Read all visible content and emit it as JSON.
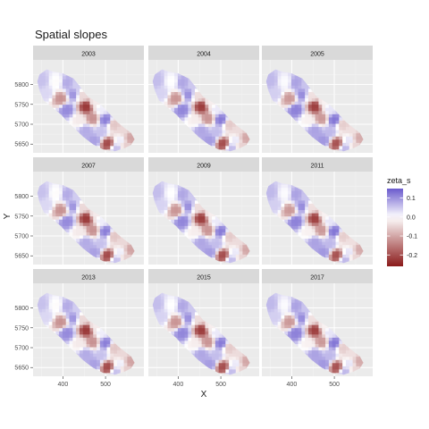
{
  "chart_data": {
    "type": "heatmap",
    "title": "Spatial slopes",
    "xlabel": "X",
    "ylabel": "Y",
    "xlim": [
      330,
      590
    ],
    "ylim": [
      5628,
      5862
    ],
    "x_ticks": [
      400,
      500
    ],
    "y_ticks": [
      5650,
      5700,
      5750,
      5800
    ],
    "panels": [
      "2003",
      "2004",
      "2005",
      "2007",
      "2009",
      "2011",
      "2013",
      "2015",
      "2017"
    ],
    "facet_layout": {
      "rows": 3,
      "cols": 3
    },
    "legend": {
      "title": "zeta_s",
      "position": "right",
      "range": [
        -0.26,
        0.15
      ],
      "ticks": [
        0.1,
        0.0,
        -0.1,
        -0.2
      ],
      "tick_labels": [
        "0.1",
        "0.0",
        "-0.1",
        "-0.2"
      ],
      "low_color": "#8b1a1a",
      "mid_color": "#ffffff",
      "high_color": "#6a5acd"
    },
    "outline_xy": [
      [
        345,
        5825
      ],
      [
        362,
        5838
      ],
      [
        378,
        5832
      ],
      [
        400,
        5828
      ],
      [
        425,
        5815
      ],
      [
        440,
        5795
      ],
      [
        458,
        5770
      ],
      [
        488,
        5750
      ],
      [
        508,
        5728
      ],
      [
        528,
        5705
      ],
      [
        545,
        5690
      ],
      [
        560,
        5678
      ],
      [
        568,
        5662
      ],
      [
        560,
        5648
      ],
      [
        545,
        5640
      ],
      [
        522,
        5632
      ],
      [
        495,
        5636
      ],
      [
        470,
        5650
      ],
      [
        448,
        5668
      ],
      [
        432,
        5685
      ],
      [
        412,
        5705
      ],
      [
        395,
        5725
      ],
      [
        375,
        5742
      ],
      [
        355,
        5760
      ],
      [
        345,
        5785
      ],
      [
        340,
        5808
      ]
    ],
    "surface_nodes": [
      {
        "x": 350,
        "y": 5810,
        "z": 0.06
      },
      {
        "x": 385,
        "y": 5808,
        "z": 0.0
      },
      {
        "x": 410,
        "y": 5805,
        "z": 0.08
      },
      {
        "x": 432,
        "y": 5800,
        "z": 0.05
      },
      {
        "x": 362,
        "y": 5778,
        "z": 0.04
      },
      {
        "x": 395,
        "y": 5765,
        "z": -0.12
      },
      {
        "x": 425,
        "y": 5775,
        "z": 0.1
      },
      {
        "x": 445,
        "y": 5772,
        "z": -0.04
      },
      {
        "x": 475,
        "y": 5755,
        "z": -0.02
      },
      {
        "x": 410,
        "y": 5738,
        "z": 0.11
      },
      {
        "x": 455,
        "y": 5745,
        "z": -0.22
      },
      {
        "x": 490,
        "y": 5738,
        "z": 0.02
      },
      {
        "x": 440,
        "y": 5712,
        "z": -0.02
      },
      {
        "x": 470,
        "y": 5715,
        "z": -0.12
      },
      {
        "x": 500,
        "y": 5712,
        "z": 0.12
      },
      {
        "x": 520,
        "y": 5700,
        "z": -0.06
      },
      {
        "x": 455,
        "y": 5685,
        "z": 0.08
      },
      {
        "x": 490,
        "y": 5680,
        "z": 0.06
      },
      {
        "x": 540,
        "y": 5685,
        "z": -0.04
      },
      {
        "x": 475,
        "y": 5660,
        "z": 0.09
      },
      {
        "x": 505,
        "y": 5652,
        "z": -0.2
      },
      {
        "x": 535,
        "y": 5660,
        "z": 0.02
      },
      {
        "x": 558,
        "y": 5665,
        "z": -0.1
      },
      {
        "x": 525,
        "y": 5640,
        "z": 0.06
      },
      {
        "x": 548,
        "y": 5648,
        "z": -0.05
      }
    ]
  }
}
